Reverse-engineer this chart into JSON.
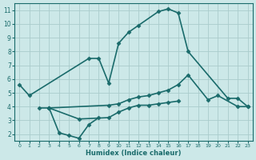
{
  "xlabel": "Humidex (Indice chaleur)",
  "bg_color": "#cce8e8",
  "grid_color": "#aacccc",
  "line_color": "#1a6b6b",
  "xlim": [
    -0.5,
    23.5
  ],
  "ylim": [
    1.5,
    11.5
  ],
  "yticks": [
    2,
    3,
    4,
    5,
    6,
    7,
    8,
    9,
    10,
    11
  ],
  "xticks": [
    0,
    1,
    2,
    3,
    4,
    5,
    6,
    7,
    8,
    9,
    10,
    11,
    12,
    13,
    14,
    15,
    16,
    17,
    18,
    19,
    20,
    21,
    22,
    23
  ],
  "lines": [
    {
      "x": [
        0,
        1,
        7,
        8,
        9,
        10,
        11,
        12,
        14,
        15,
        16,
        17,
        21,
        22,
        23
      ],
      "y": [
        5.6,
        4.8,
        7.5,
        7.5,
        5.7,
        8.6,
        9.4,
        9.9,
        10.9,
        11.1,
        10.8,
        8.0,
        4.6,
        4.6,
        4.0
      ]
    },
    {
      "x": [
        2,
        3,
        9,
        10,
        11,
        12,
        13,
        14,
        15,
        16,
        17,
        19,
        20,
        22,
        23
      ],
      "y": [
        3.9,
        3.9,
        4.1,
        4.2,
        4.5,
        4.7,
        4.8,
        5.0,
        5.2,
        5.6,
        6.3,
        4.5,
        4.8,
        4.0,
        4.0
      ]
    },
    {
      "x": [
        3,
        6,
        9,
        10,
        11,
        12,
        13,
        14,
        15,
        16
      ],
      "y": [
        3.9,
        3.1,
        3.2,
        3.6,
        3.9,
        4.1,
        4.1,
        4.2,
        4.3,
        4.4
      ]
    },
    {
      "x": [
        3,
        4,
        5,
        6,
        7,
        8
      ],
      "y": [
        3.9,
        2.1,
        1.9,
        1.7,
        2.7,
        3.2
      ]
    }
  ]
}
